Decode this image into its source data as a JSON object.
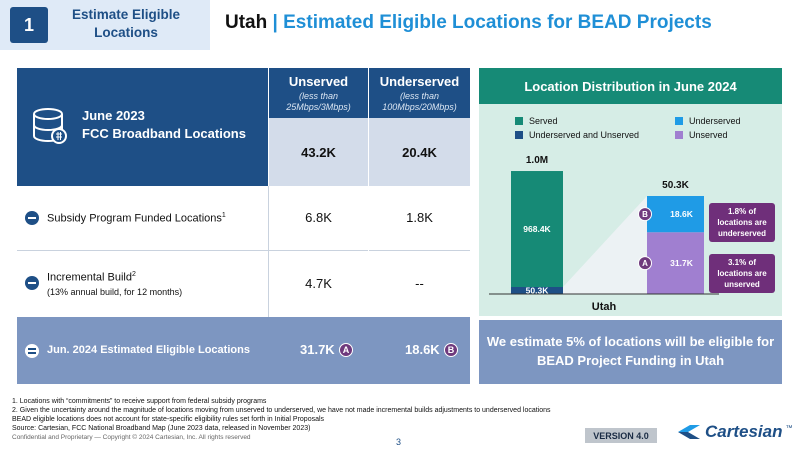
{
  "header": {
    "section_number": "1",
    "section_label": "Estimate Eligible Locations",
    "title_state": "Utah",
    "title_separator": "|",
    "title_rest": "Estimated Eligible Locations for BEAD Projects"
  },
  "table": {
    "hero_line1": "June 2023",
    "hero_line2": "FCC Broadband Locations",
    "columns": [
      {
        "heading": "Unserved",
        "sub1": "(less than",
        "sub2": "25Mbps/3Mbps)",
        "base_value": "43.2K"
      },
      {
        "heading": "Underserved",
        "sub1": "(less than",
        "sub2": "100Mbps/20Mbps)",
        "base_value": "20.4K"
      }
    ],
    "rows": [
      {
        "label": "Subsidy Program Funded Locations",
        "footnote": "1",
        "sub": "",
        "unserved": "6.8K",
        "underserved": "1.8K"
      },
      {
        "label": "Incremental Build",
        "footnote": "2",
        "sub": "(13% annual build, for 12 months)",
        "unserved": "4.7K",
        "underserved": "--"
      }
    ],
    "total": {
      "label": "Jun. 2024 Estimated Eligible Locations",
      "unserved": "31.7K",
      "unserved_badge": "A",
      "underserved": "18.6K",
      "underserved_badge": "B"
    }
  },
  "chart_panel": {
    "title": "Location Distribution in June 2024",
    "footer": "We estimate 5% of locations will be eligible for BEAD Project Funding in Utah",
    "callout_b": "1.8% of locations are underserved",
    "callout_a": "3.1% of locations are unserved",
    "colors": {
      "served": "#168a76",
      "underserved_unserved": "#1e4f86",
      "underserved": "#1f9be6",
      "unserved": "#a07fd0"
    }
  },
  "chart_data": {
    "type": "bar",
    "categories": [
      "Utah"
    ],
    "legend": [
      "Served",
      "Underserved",
      "Underserved and Unserved",
      "Unserved"
    ],
    "bars": [
      {
        "total_label": "1.0M",
        "segments": [
          {
            "name": "Underserved and Unserved",
            "value": 50.3,
            "label": "50.3K"
          },
          {
            "name": "Served",
            "value": 968.4,
            "label": "968.4K"
          }
        ]
      },
      {
        "total_label": "50.3K",
        "segments": [
          {
            "name": "Unserved",
            "value": 31.7,
            "label": "31.7K",
            "badge": "A"
          },
          {
            "name": "Underserved",
            "value": 18.6,
            "label": "18.6K",
            "badge": "B"
          }
        ]
      }
    ],
    "xlabel": "Utah"
  },
  "footer": {
    "note1": "1. Locations with “commitments” to receive support from federal subsidy programs",
    "note2": "2. Given the uncertainty around the magnitude of locations moving from unserved to underserved, we have not made incremental builds adjustments to underserved locations",
    "note3": "BEAD eligible locations does not account for state-specific eligibility rules set forth in Initial Proposals",
    "note4": "Source: Cartesian, FCC National Broadband Map (June 2023 data, released in November 2023)",
    "confidential": "Confidential and Proprietary — Copyright © 2024 Cartesian, Inc. All rights reserved",
    "page": "3",
    "version": "VERSION 4.0",
    "logo": "Cartesian",
    "logo_tm": "™"
  }
}
